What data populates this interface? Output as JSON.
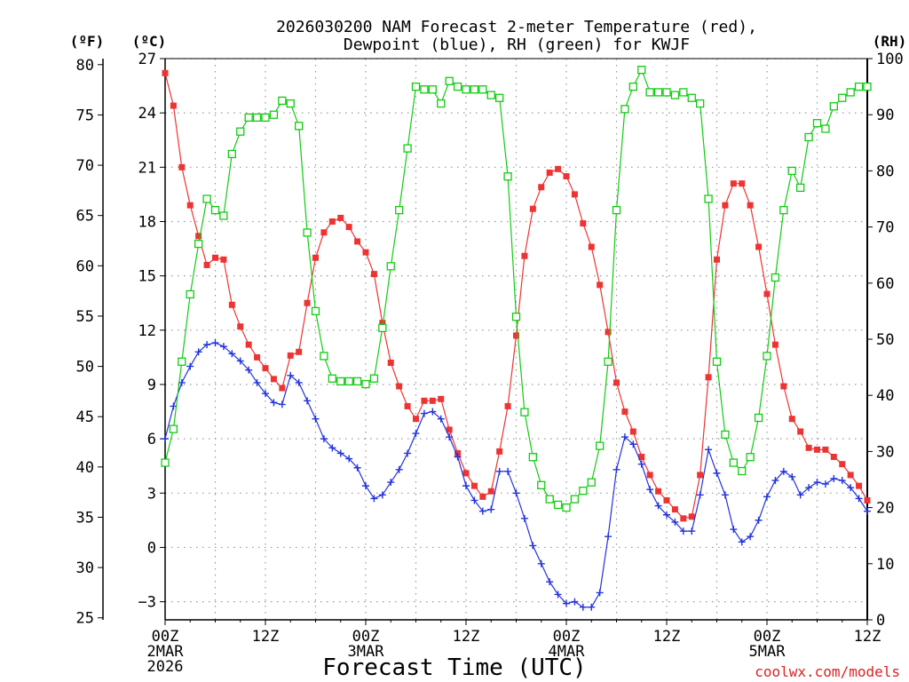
{
  "chart_data": {
    "type": "line",
    "title_line1": "2026030200 NAM Forecast 2-meter Temperature (red),",
    "title_line2": "Dewpoint (blue), RH (green) for KWJF",
    "left_axis_f_label": "(ºF)",
    "left_axis_c_label": "(ºC)",
    "right_axis_label": "(RH)",
    "xlabel": "Forecast Time (UTC)",
    "watermark": "coolwx.com/models",
    "x_unit": "forecast hour",
    "xlim": [
      0,
      84
    ],
    "ylim_c": [
      -4,
      27
    ],
    "ylim_f": [
      24.8,
      80.6
    ],
    "ylim_rh": [
      0,
      100
    ],
    "c_ticks": [
      "27",
      "24",
      "21",
      "18",
      "15",
      "12",
      "9",
      "6",
      "3",
      "0",
      "−3"
    ],
    "f_ticks": [
      "80",
      "75",
      "70",
      "65",
      "60",
      "55",
      "50",
      "45",
      "40",
      "35",
      "30",
      "25"
    ],
    "rh_ticks": [
      "100",
      "90",
      "80",
      "70",
      "60",
      "50",
      "40",
      "30",
      "20",
      "10",
      "0"
    ],
    "x_ticks": [
      {
        "hour": 0,
        "line1": "00Z",
        "line2": "2MAR",
        "line3": "2026"
      },
      {
        "hour": 12,
        "line1": "12Z",
        "line2": "",
        "line3": ""
      },
      {
        "hour": 24,
        "line1": "00Z",
        "line2": "3MAR",
        "line3": ""
      },
      {
        "hour": 36,
        "line1": "12Z",
        "line2": "",
        "line3": ""
      },
      {
        "hour": 48,
        "line1": "00Z",
        "line2": "4MAR",
        "line3": ""
      },
      {
        "hour": 60,
        "line1": "12Z",
        "line2": "",
        "line3": ""
      },
      {
        "hour": 72,
        "line1": "00Z",
        "line2": "5MAR",
        "line3": ""
      },
      {
        "hour": 84,
        "line1": "12Z",
        "line2": "",
        "line3": ""
      }
    ],
    "series": [
      {
        "name": "Temperature (°C)",
        "color": "#ee3333",
        "marker": "filled-square",
        "axis": "C",
        "x": [
          0,
          1,
          2,
          3,
          4,
          5,
          6,
          7,
          8,
          9,
          10,
          11,
          12,
          13,
          14,
          15,
          16,
          17,
          18,
          19,
          20,
          21,
          22,
          23,
          24,
          25,
          26,
          27,
          28,
          29,
          30,
          31,
          32,
          33,
          34,
          35,
          36,
          37,
          38,
          39,
          40,
          41,
          42,
          43,
          44,
          45,
          46,
          47,
          48,
          49,
          50,
          51,
          52,
          53,
          54,
          55,
          56,
          57,
          58,
          59,
          60,
          61,
          62,
          63,
          64,
          65,
          66,
          67,
          68,
          69,
          70,
          71,
          72,
          73,
          74,
          75,
          76,
          77,
          78,
          79,
          80,
          81,
          82,
          83,
          84
        ],
        "y": [
          26.2,
          24.4,
          21.0,
          18.9,
          17.2,
          15.6,
          16.0,
          15.9,
          13.4,
          12.2,
          11.2,
          10.5,
          9.9,
          9.3,
          8.8,
          10.6,
          10.8,
          13.5,
          16.0,
          17.4,
          18.0,
          18.2,
          17.7,
          16.9,
          16.3,
          15.1,
          12.4,
          10.2,
          8.9,
          7.8,
          7.1,
          8.1,
          8.1,
          8.2,
          6.5,
          5.2,
          4.1,
          3.4,
          2.8,
          3.1,
          5.3,
          7.8,
          11.7,
          16.1,
          18.7,
          19.9,
          20.7,
          20.9,
          20.5,
          19.5,
          17.9,
          16.6,
          14.5,
          11.9,
          9.1,
          7.5,
          6.4,
          5.0,
          4.0,
          3.1,
          2.6,
          2.1,
          1.6,
          1.7,
          4.0,
          9.4,
          15.9,
          18.9,
          20.1,
          20.1,
          18.9,
          16.6,
          14.0,
          11.2,
          8.9,
          7.1,
          6.4,
          5.5,
          5.4,
          5.4,
          5.0,
          4.6,
          4.0,
          3.4,
          2.6
        ]
      },
      {
        "name": "Dewpoint (°C)",
        "color": "#2233dd",
        "marker": "plus",
        "axis": "C",
        "x": [
          0,
          1,
          2,
          3,
          4,
          5,
          6,
          7,
          8,
          9,
          10,
          11,
          12,
          13,
          14,
          15,
          16,
          17,
          18,
          19,
          20,
          21,
          22,
          23,
          24,
          25,
          26,
          27,
          28,
          29,
          30,
          31,
          32,
          33,
          34,
          35,
          36,
          37,
          38,
          39,
          40,
          41,
          42,
          43,
          44,
          45,
          46,
          47,
          48,
          49,
          50,
          51,
          52,
          53,
          54,
          55,
          56,
          57,
          58,
          59,
          60,
          61,
          62,
          63,
          64,
          65,
          66,
          67,
          68,
          69,
          70,
          71,
          72,
          73,
          74,
          75,
          76,
          77,
          78,
          79,
          80,
          81,
          82,
          83,
          84
        ],
        "y": [
          6.0,
          7.8,
          9.1,
          10.0,
          10.8,
          11.2,
          11.3,
          11.1,
          10.7,
          10.3,
          9.8,
          9.1,
          8.5,
          8.0,
          7.9,
          9.5,
          9.1,
          8.1,
          7.1,
          6.0,
          5.5,
          5.2,
          4.9,
          4.4,
          3.4,
          2.7,
          2.9,
          3.6,
          4.3,
          5.2,
          6.3,
          7.4,
          7.5,
          7.1,
          6.1,
          5.0,
          3.4,
          2.6,
          2.0,
          2.1,
          4.2,
          4.2,
          3.0,
          1.6,
          0.1,
          -0.9,
          -1.9,
          -2.6,
          -3.1,
          -3.0,
          -3.3,
          -3.3,
          -2.5,
          0.6,
          4.3,
          6.1,
          5.7,
          4.6,
          3.2,
          2.3,
          1.8,
          1.4,
          0.9,
          0.9,
          2.9,
          5.4,
          4.1,
          2.9,
          1.0,
          0.3,
          0.6,
          1.5,
          2.8,
          3.7,
          4.2,
          3.9,
          2.9,
          3.3,
          3.6,
          3.5,
          3.8,
          3.7,
          3.3,
          2.7,
          2.0
        ]
      },
      {
        "name": "RH (%)",
        "color": "#11cc11",
        "marker": "open-square",
        "axis": "RH",
        "x": [
          0,
          1,
          2,
          3,
          4,
          5,
          6,
          7,
          8,
          9,
          10,
          11,
          12,
          13,
          14,
          15,
          16,
          17,
          18,
          19,
          20,
          21,
          22,
          23,
          24,
          25,
          26,
          27,
          28,
          29,
          30,
          31,
          32,
          33,
          34,
          35,
          36,
          37,
          38,
          39,
          40,
          41,
          42,
          43,
          44,
          45,
          46,
          47,
          48,
          49,
          50,
          51,
          52,
          53,
          54,
          55,
          56,
          57,
          58,
          59,
          60,
          61,
          62,
          63,
          64,
          65,
          66,
          67,
          68,
          69,
          70,
          71,
          72,
          73,
          74,
          75,
          76,
          77,
          78,
          79,
          80,
          81,
          82,
          83,
          84
        ],
        "y": [
          28,
          34,
          46,
          58,
          67,
          75,
          73,
          72,
          83,
          87,
          89.5,
          89.5,
          89.5,
          90,
          92.5,
          92,
          88,
          69,
          55,
          47,
          43,
          42.5,
          42.5,
          42.5,
          42,
          43,
          52,
          63,
          73,
          84,
          95,
          94.5,
          94.5,
          92,
          96,
          95,
          94.5,
          94.5,
          94.5,
          93.5,
          93,
          79,
          54,
          37,
          29,
          24,
          21.5,
          20.5,
          20,
          21.5,
          23,
          24.5,
          31,
          46,
          73,
          91,
          95,
          98,
          94,
          94,
          94,
          93.5,
          94,
          93,
          92,
          75,
          46,
          33,
          28,
          26.5,
          29,
          36,
          47,
          61,
          73,
          80,
          77,
          86,
          88.5,
          87.5,
          91.5,
          93,
          94,
          95,
          95
        ]
      }
    ],
    "grid": true,
    "legend": "none"
  }
}
